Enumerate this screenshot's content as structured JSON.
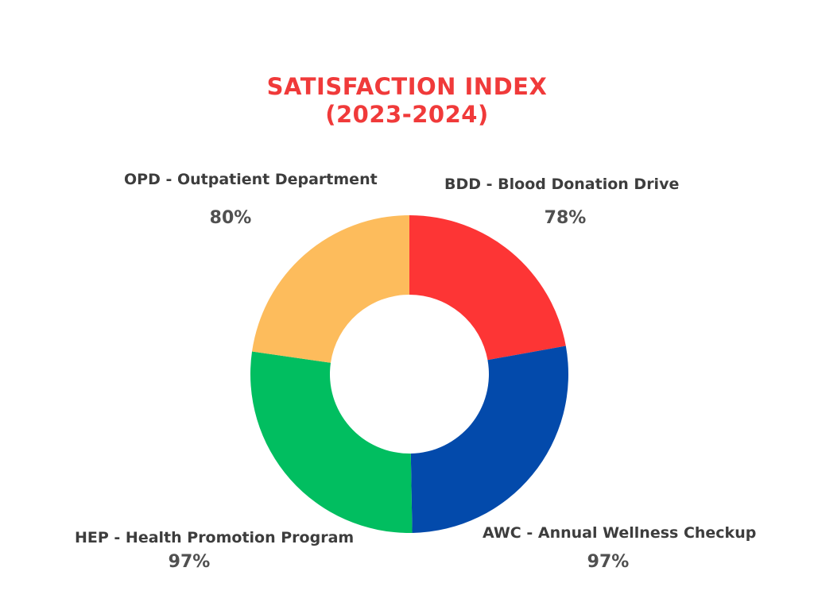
{
  "title_lines": [
    "SATISFACTION INDEX",
    "(2023-2024)"
  ],
  "colors": {
    "title": "#f03a3a",
    "BDD": "#fd3535",
    "AWC": "#034aab",
    "HEP": "#01be60",
    "OPD": "#fdbc5c"
  },
  "chart_data": {
    "type": "pie",
    "variant": "donut",
    "title": "SATISFACTION INDEX (2023-2024)",
    "slices": [
      {
        "label": "BDD - Blood Donation Drive",
        "value": 78,
        "value_label": "78%",
        "color": "#fd3535"
      },
      {
        "label": "AWC - Annual Wellness Checkup",
        "value": 97,
        "value_label": "97%",
        "color": "#034aab"
      },
      {
        "label": "HEP - Health Promotion Program",
        "value": 97,
        "value_label": "97%",
        "color": "#01be60"
      },
      {
        "label": "OPD - Outpatient Department",
        "value": 80,
        "value_label": "80%",
        "color": "#fdbc5c"
      }
    ],
    "legend": "none",
    "grid": false
  }
}
